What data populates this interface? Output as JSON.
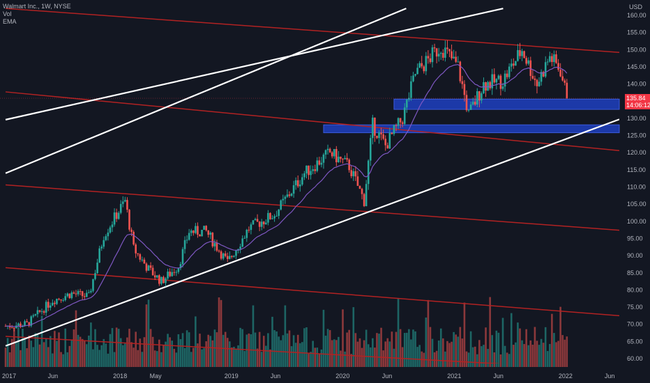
{
  "legend": {
    "title": "Walmart Inc., 1W, NYSE",
    "vol_label": "Vol",
    "ema_label": "EMA"
  },
  "price_axis": {
    "currency": "USD",
    "ticks": [
      "160.00",
      "155.00",
      "150.00",
      "145.00",
      "140.00",
      "135.00",
      "130.00",
      "125.00",
      "120.00",
      "115.00",
      "110.00",
      "105.00",
      "100.00",
      "95.00",
      "90.00",
      "85.00",
      "80.00",
      "75.00",
      "70.00",
      "65.00",
      "60.00"
    ]
  },
  "time_axis": {
    "ticks": [
      "2017",
      "Jun",
      "2018",
      "May",
      "2019",
      "Jun",
      "2020",
      "Jun",
      "2021",
      "Jun",
      "2022",
      "Jun"
    ]
  },
  "last_price": {
    "value": "135.84",
    "countdown": "14:06:12"
  },
  "colors": {
    "background": "#131722",
    "up_candle": "#26a69a",
    "down_candle": "#ef5350",
    "ema": "#7e57c2",
    "trendline_red": "#b22222",
    "trendline_white": "#ffffff",
    "zone": "#1e3fbf",
    "price_tag": "#f23645"
  },
  "chart_data": {
    "type": "candlestick",
    "symbol": "Walmart Inc.",
    "interval": "1W",
    "exchange": "NYSE",
    "ylim": [
      58,
      162
    ],
    "xlim": [
      "2016-12-26",
      "2022-07-01"
    ],
    "close_path": [
      [
        "2016-12-26",
        69.5
      ],
      [
        "2017-03-06",
        70.0
      ],
      [
        "2017-05-29",
        77.0
      ],
      [
        "2017-07-31",
        79.0
      ],
      [
        "2017-09-25",
        78.0
      ],
      [
        "2017-11-13",
        96.0
      ],
      [
        "2018-01-22",
        106.0
      ],
      [
        "2018-02-19",
        92.0
      ],
      [
        "2018-04-09",
        86.0
      ],
      [
        "2018-05-21",
        82.5
      ],
      [
        "2018-07-16",
        87.0
      ],
      [
        "2018-08-20",
        97.0
      ],
      [
        "2018-10-15",
        97.0
      ],
      [
        "2018-12-24",
        88.0
      ],
      [
        "2019-03-04",
        98.0
      ],
      [
        "2019-05-27",
        102.0
      ],
      [
        "2019-09-02",
        114.0
      ],
      [
        "2019-11-25",
        120.0
      ],
      [
        "2020-01-27",
        116.0
      ],
      [
        "2020-03-16",
        106.0
      ],
      [
        "2020-04-13",
        128.0
      ],
      [
        "2020-05-25",
        122.0
      ],
      [
        "2020-07-20",
        130.0
      ],
      [
        "2020-08-31",
        143.0
      ],
      [
        "2020-11-23",
        151.0
      ],
      [
        "2021-01-18",
        145.0
      ],
      [
        "2021-02-22",
        131.0
      ],
      [
        "2021-04-12",
        140.0
      ],
      [
        "2021-06-14",
        141.0
      ],
      [
        "2021-08-16",
        150.0
      ],
      [
        "2021-10-04",
        140.0
      ],
      [
        "2021-11-15",
        148.0
      ],
      [
        "2021-12-20",
        144.0
      ],
      [
        "2022-01-10",
        135.84
      ]
    ],
    "last_close": 135.84,
    "zones": [
      {
        "from_date": "2020-06-22",
        "to_date": "2022-07-01",
        "low": 132.6,
        "high": 135.6
      },
      {
        "from_date": "2019-11-04",
        "to_date": "2022-07-01",
        "low": 125.8,
        "high": 128.1
      }
    ],
    "trendlines": [
      {
        "color": "red",
        "start": [
          "2016-12-26",
          162.0
        ],
        "end": [
          "2022-07-01",
          149.2
        ]
      },
      {
        "color": "red",
        "start": [
          "2016-12-26",
          137.7
        ],
        "end": [
          "2022-07-01",
          120.6
        ]
      },
      {
        "color": "red",
        "start": [
          "2016-12-26",
          110.6
        ],
        "end": [
          "2022-07-01",
          97.4
        ]
      },
      {
        "color": "red",
        "start": [
          "2016-12-26",
          86.5
        ],
        "end": [
          "2022-07-01",
          72.5
        ]
      },
      {
        "color": "red",
        "start": [
          "2016-12-26",
          66.5
        ],
        "end": [
          "2021-06-01",
          58.5
        ]
      },
      {
        "color": "white",
        "start": [
          "2016-12-26",
          63.7
        ],
        "end": [
          "2022-07-01",
          129.7
        ]
      },
      {
        "color": "white",
        "start": [
          "2016-12-26",
          114.0
        ],
        "end": [
          "2020-08-01",
          162.0
        ]
      },
      {
        "color": "white",
        "start": [
          "2016-12-26",
          129.6
        ],
        "end": [
          "2021-06-15",
          162.0
        ]
      }
    ]
  }
}
